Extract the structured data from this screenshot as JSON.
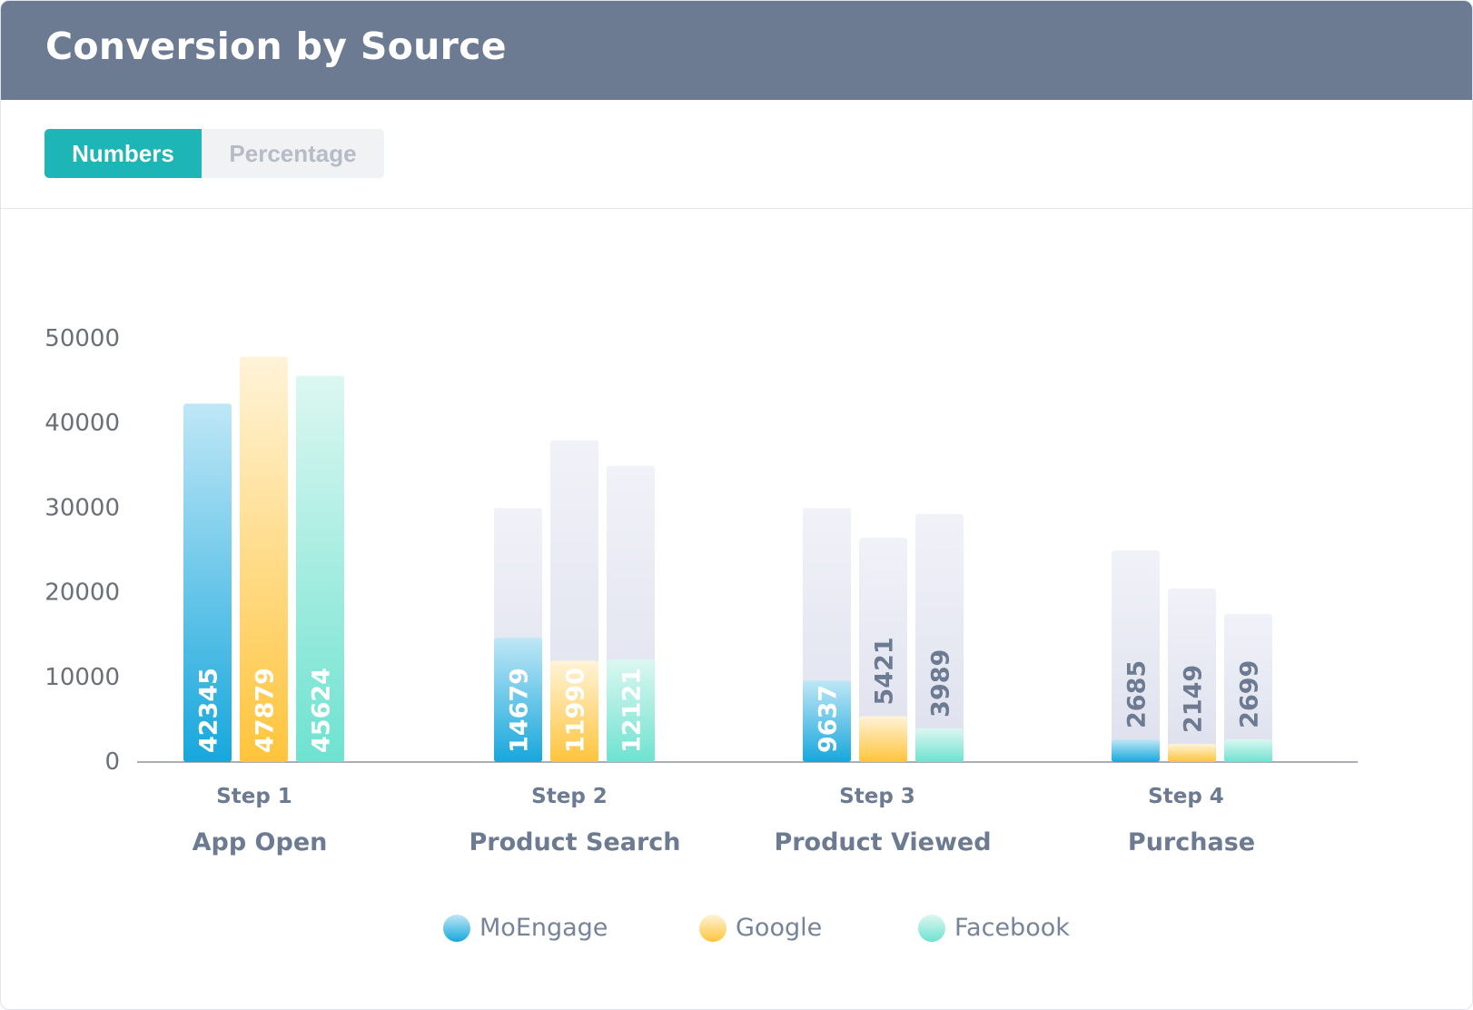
{
  "header": {
    "title": "Conversion by Source"
  },
  "toggle": {
    "numbers_label": "Numbers",
    "percentage_label": "Percentage",
    "selected": "Numbers"
  },
  "colors": {
    "moengage_top": "#bfe7f6",
    "moengage_bottom": "#17a7dc",
    "google_top": "#fff3d8",
    "google_bottom": "#ffc43b",
    "facebook_top": "#dcf7f1",
    "facebook_bottom": "#6ee2d0",
    "ghost_top": "#f1f2f8",
    "ghost_bottom": "#dde0ed",
    "axis_text": "#6b6f76",
    "category_text": "#6c7b91"
  },
  "chart_data": {
    "type": "bar",
    "ylim": [
      0,
      50000
    ],
    "y_ticks": [
      "0",
      "10000",
      "20000",
      "30000",
      "40000",
      "50000"
    ],
    "categories": [
      {
        "step": "Step 1",
        "name": "App Open"
      },
      {
        "step": "Step 2",
        "name": "Product Search"
      },
      {
        "step": "Step 3",
        "name": "Product Viewed"
      },
      {
        "step": "Step 4",
        "name": "Purchase"
      }
    ],
    "series": [
      {
        "name": "MoEngage",
        "values": [
          42345,
          14679,
          9637,
          2685
        ],
        "labels": [
          "42345",
          "14679",
          "9637",
          "2685"
        ],
        "previous": [
          null,
          30000,
          30000,
          25000
        ]
      },
      {
        "name": "Google",
        "values": [
          47879,
          11990,
          5421,
          2149
        ],
        "labels": [
          "47879",
          "11990",
          "5421",
          "2149"
        ],
        "previous": [
          null,
          38000,
          26500,
          20500
        ]
      },
      {
        "name": "Facebook",
        "values": [
          45624,
          12121,
          3989,
          2699
        ],
        "labels": [
          "45624",
          "12121",
          "3989",
          "2699"
        ],
        "previous": [
          null,
          35000,
          29300,
          17500
        ]
      }
    ],
    "legend": {
      "position": "bottom",
      "items": [
        "MoEngage",
        "Google",
        "Facebook"
      ]
    }
  }
}
